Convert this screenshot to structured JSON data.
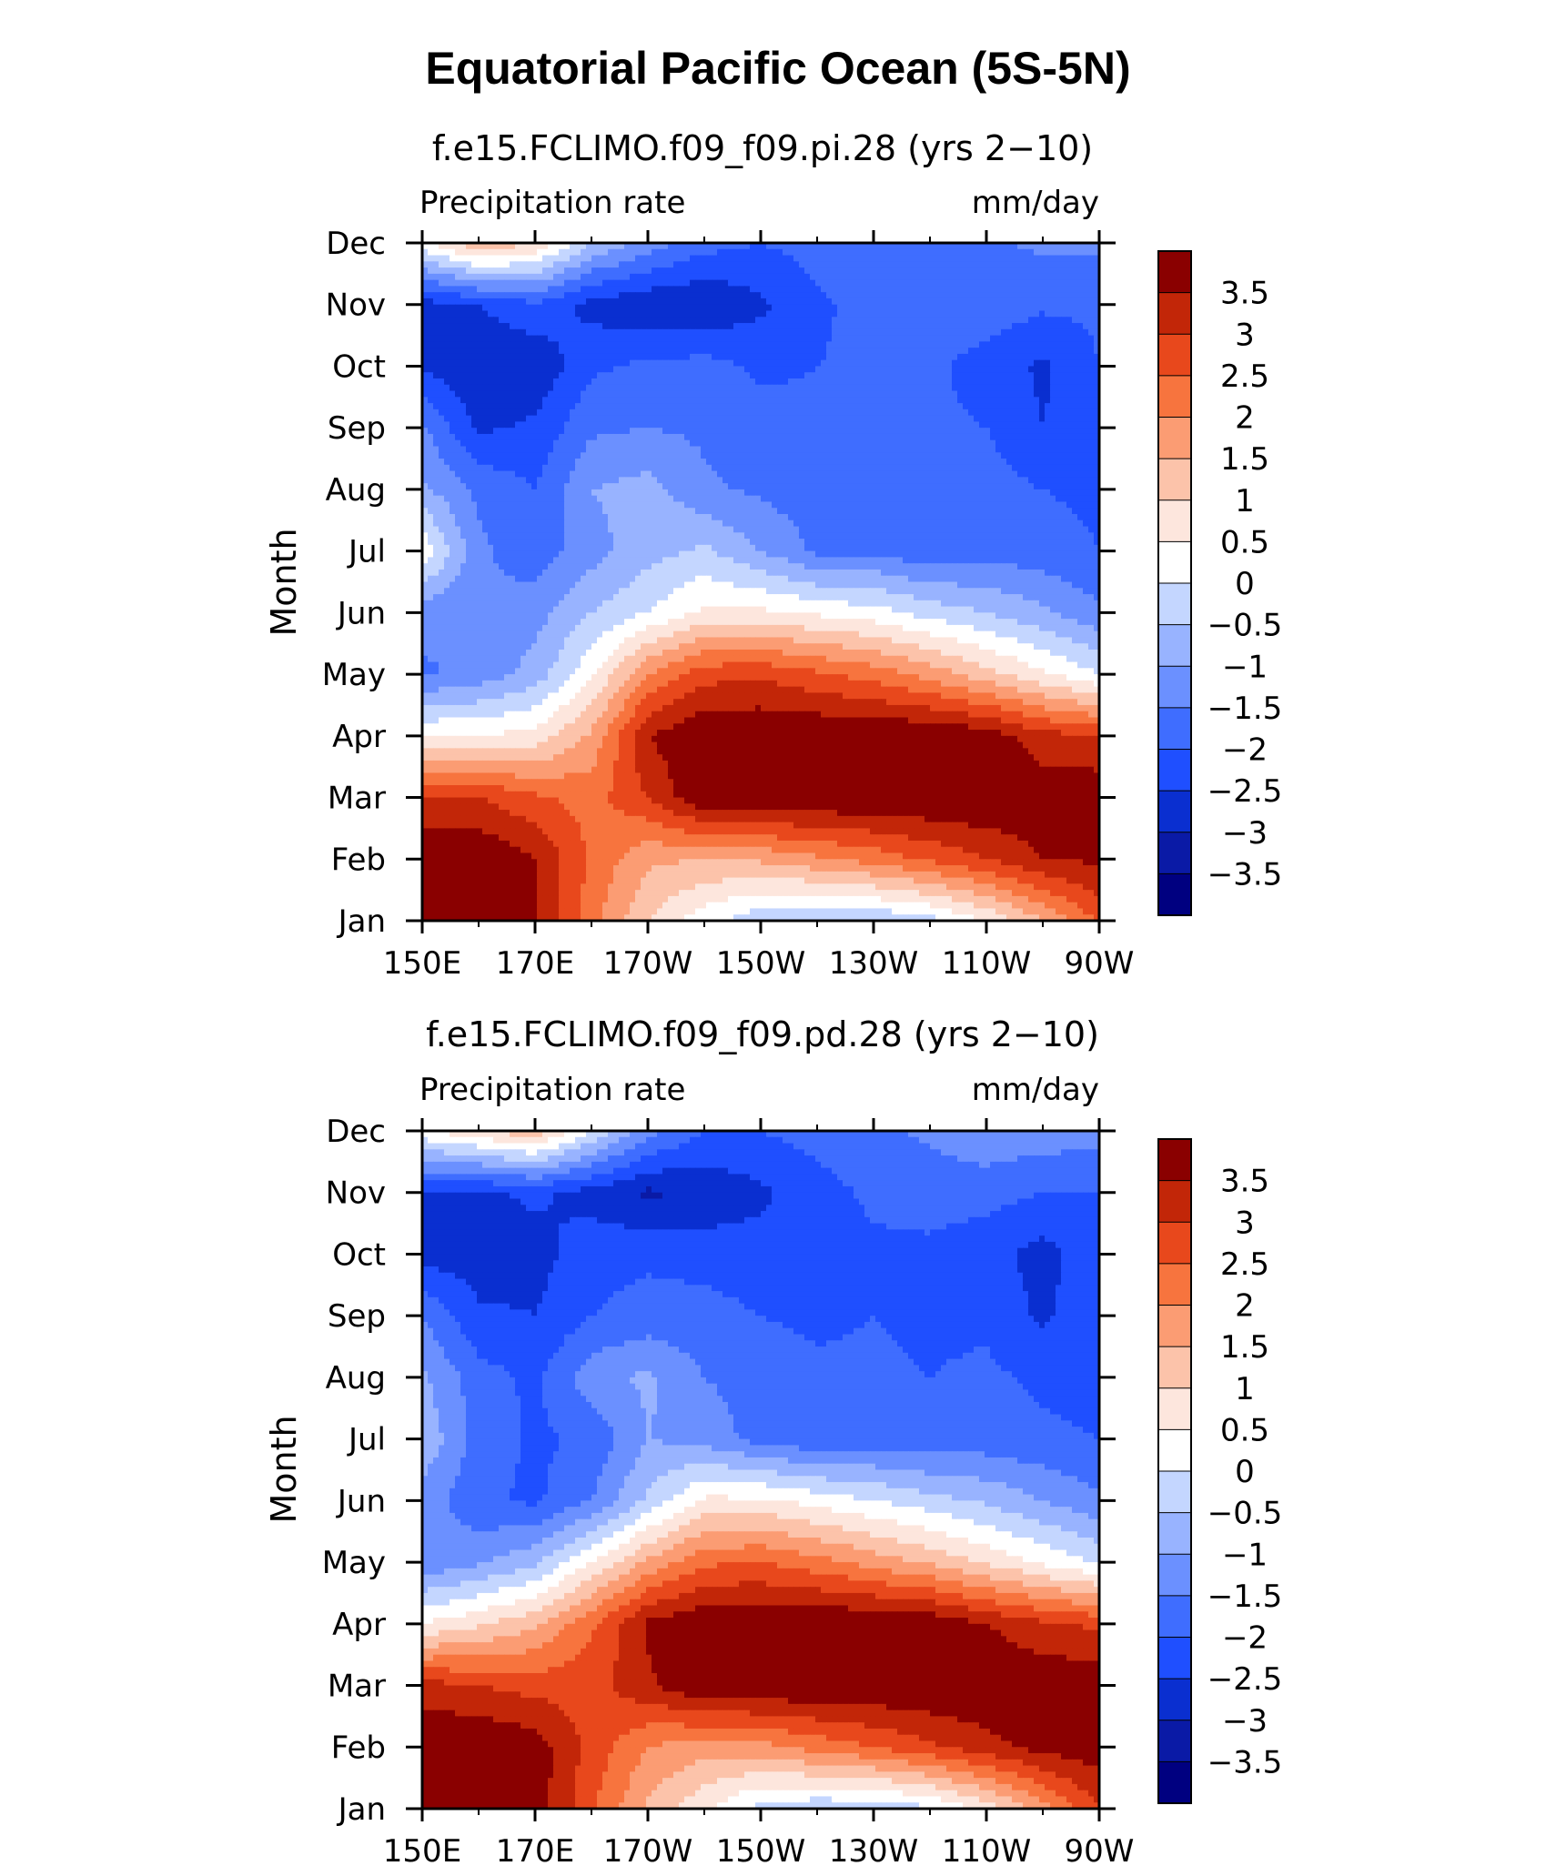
{
  "figure": {
    "title": "Equatorial Pacific Ocean (5S-5N)"
  },
  "colors": {
    "levels_palette": [
      "#000080",
      "#0a1aa6",
      "#0a2fd0",
      "#1f4fff",
      "#3f6dff",
      "#6b90ff",
      "#98b3ff",
      "#c4d6ff",
      "#ffffff",
      "#fde6dd",
      "#fcc3aa",
      "#fb9c73",
      "#f7743e",
      "#e8481c",
      "#c22608",
      "#8a0000"
    ]
  },
  "chart_data": [
    {
      "type": "heatmap",
      "title": "f.e15.FCLIMO.f09_f09.pi.28 (yrs 2−10)",
      "left_string": "Precipitation rate",
      "right_string": "mm/day",
      "ylabel": "Month",
      "xlabel": "",
      "x_ticks": [
        "150E",
        "170E",
        "170W",
        "150W",
        "130W",
        "110W",
        "90W"
      ],
      "x_tick_values": [
        150,
        170,
        190,
        210,
        230,
        250,
        270
      ],
      "y_ticks": [
        "Jan",
        "Feb",
        "Mar",
        "Apr",
        "May",
        "Jun",
        "Jul",
        "Aug",
        "Sep",
        "Oct",
        "Nov",
        "Dec"
      ],
      "xlim": [
        150,
        270
      ],
      "ylim": [
        1,
        12
      ],
      "colorbar_labels": [
        "3.5",
        "3",
        "2.5",
        "2",
        "1.5",
        "1",
        "0.5",
        "0",
        "−0.5",
        "−1",
        "−1.5",
        "−2",
        "−2.5",
        "−3",
        "−3.5"
      ],
      "x": [
        150,
        160,
        170,
        180,
        190,
        200,
        210,
        220,
        230,
        240,
        250,
        260,
        270
      ],
      "y": [
        1,
        2,
        3,
        4,
        5,
        6,
        7,
        8,
        9,
        10,
        11,
        12
      ],
      "values": [
        [
          4.0,
          4.0,
          3.6,
          2.2,
          1.0,
          0.2,
          -0.4,
          -0.6,
          -0.5,
          -0.2,
          0.5,
          1.5,
          2.6
        ],
        [
          4.0,
          4.0,
          3.5,
          2.4,
          1.6,
          1.5,
          1.6,
          1.9,
          2.2,
          2.6,
          3.0,
          3.5,
          3.6
        ],
        [
          3.0,
          3.0,
          2.6,
          2.3,
          3.0,
          4.0,
          4.0,
          4.0,
          4.0,
          4.0,
          4.0,
          3.8,
          3.9
        ],
        [
          0.5,
          0.5,
          0.7,
          1.6,
          3.5,
          4.0,
          4.0,
          4.0,
          4.0,
          4.0,
          3.8,
          3.2,
          3.0
        ],
        [
          -1.6,
          -1.3,
          -0.8,
          0.4,
          2.0,
          2.8,
          2.9,
          2.6,
          2.3,
          1.8,
          1.2,
          0.6,
          0.0
        ],
        [
          -1.3,
          -1.5,
          -1.2,
          -0.5,
          0.0,
          0.6,
          0.6,
          0.4,
          0.2,
          -0.2,
          -0.5,
          -0.9,
          -1.4
        ],
        [
          0.4,
          -1.4,
          -1.8,
          -1.2,
          -0.7,
          -0.4,
          -1.0,
          -1.6,
          -1.6,
          -1.9,
          -1.7,
          -1.8,
          -2.0
        ],
        [
          -0.9,
          -1.6,
          -2.0,
          -1.0,
          -0.8,
          -1.4,
          -1.6,
          -1.8,
          -1.8,
          -1.9,
          -1.8,
          -2.0,
          -2.1
        ],
        [
          -1.4,
          -2.6,
          -2.4,
          -1.6,
          -1.5,
          -1.6,
          -1.8,
          -1.9,
          -1.8,
          -1.9,
          -2.0,
          -2.5,
          -2.0
        ],
        [
          -2.6,
          -2.9,
          -2.9,
          -2.1,
          -1.9,
          -1.8,
          -2.1,
          -2.0,
          -1.9,
          -1.9,
          -2.2,
          -2.6,
          -2.0
        ],
        [
          -2.7,
          -2.5,
          -2.1,
          -2.7,
          -2.9,
          -3.0,
          -2.6,
          -2.1,
          -1.8,
          -1.7,
          -1.7,
          -1.9,
          -1.9
        ],
        [
          0.3,
          1.5,
          1.0,
          -0.5,
          -1.2,
          -1.8,
          -2.0,
          -1.8,
          -1.7,
          -1.6,
          -1.6,
          -1.4,
          -1.4
        ]
      ]
    },
    {
      "type": "heatmap",
      "title": "f.e15.FCLIMO.f09_f09.pd.28 (yrs 2−10)",
      "left_string": "Precipitation rate",
      "right_string": "mm/day",
      "ylabel": "Month",
      "xlabel": "",
      "x_ticks": [
        "150E",
        "170E",
        "170W",
        "150W",
        "130W",
        "110W",
        "90W"
      ],
      "x_tick_values": [
        150,
        170,
        190,
        210,
        230,
        250,
        270
      ],
      "y_ticks": [
        "Jan",
        "Feb",
        "Mar",
        "Apr",
        "May",
        "Jun",
        "Jul",
        "Aug",
        "Sep",
        "Oct",
        "Nov",
        "Dec"
      ],
      "xlim": [
        150,
        270
      ],
      "ylim": [
        1,
        12
      ],
      "colorbar_labels": [
        "3.5",
        "3",
        "2.5",
        "2",
        "1.5",
        "1",
        "0.5",
        "0",
        "−0.5",
        "−1",
        "−1.5",
        "−2",
        "−2.5",
        "−3",
        "−3.5"
      ],
      "x": [
        150,
        160,
        170,
        180,
        190,
        200,
        210,
        220,
        230,
        240,
        250,
        260,
        270
      ],
      "y": [
        1,
        2,
        3,
        4,
        5,
        6,
        7,
        8,
        9,
        10,
        11,
        12
      ],
      "values": [
        [
          3.8,
          4.0,
          3.8,
          2.6,
          1.4,
          0.6,
          -0.2,
          -0.4,
          -0.4,
          -0.1,
          0.7,
          1.8,
          3.0
        ],
        [
          4.0,
          4.0,
          3.8,
          2.8,
          2.0,
          1.7,
          1.8,
          2.2,
          2.5,
          2.9,
          3.3,
          3.7,
          3.8
        ],
        [
          3.2,
          3.0,
          2.8,
          2.8,
          3.4,
          4.0,
          4.0,
          4.0,
          4.0,
          4.0,
          4.0,
          3.9,
          3.9
        ],
        [
          0.5,
          0.9,
          1.4,
          2.4,
          3.6,
          4.0,
          4.0,
          4.0,
          4.0,
          3.9,
          3.5,
          3.1,
          2.9
        ],
        [
          -1.4,
          -1.1,
          -0.6,
          0.5,
          1.6,
          2.4,
          2.5,
          2.2,
          1.8,
          1.4,
          0.9,
          0.4,
          -0.1
        ],
        [
          -1.2,
          -1.9,
          -2.1,
          -1.5,
          -0.4,
          0.6,
          0.6,
          0.3,
          0.0,
          -0.3,
          -0.6,
          -1.0,
          -1.4
        ],
        [
          -0.6,
          -1.7,
          -2.1,
          -1.9,
          -1.0,
          -1.2,
          -1.7,
          -1.9,
          -1.8,
          -1.9,
          -1.8,
          -1.9,
          -2.0
        ],
        [
          -0.9,
          -1.8,
          -2.1,
          -1.2,
          -0.9,
          -1.5,
          -1.7,
          -1.9,
          -1.9,
          -2.0,
          -1.9,
          -2.1,
          -2.2
        ],
        [
          -1.5,
          -2.4,
          -2.5,
          -2.0,
          -1.8,
          -1.8,
          -2.0,
          -2.1,
          -2.0,
          -2.1,
          -2.1,
          -2.6,
          -2.1
        ],
        [
          -2.7,
          -2.8,
          -2.7,
          -2.2,
          -2.1,
          -2.2,
          -2.3,
          -2.2,
          -2.1,
          -2.1,
          -2.3,
          -2.7,
          -2.1
        ],
        [
          -2.5,
          -2.6,
          -2.4,
          -2.7,
          -3.1,
          -2.9,
          -2.6,
          -2.2,
          -1.9,
          -1.8,
          -1.8,
          -2.0,
          -2.0
        ],
        [
          0.4,
          0.9,
          1.4,
          0.0,
          -1.3,
          -2.0,
          -2.0,
          -1.8,
          -1.6,
          -1.4,
          -1.1,
          -1.2,
          -1.3
        ]
      ]
    }
  ]
}
